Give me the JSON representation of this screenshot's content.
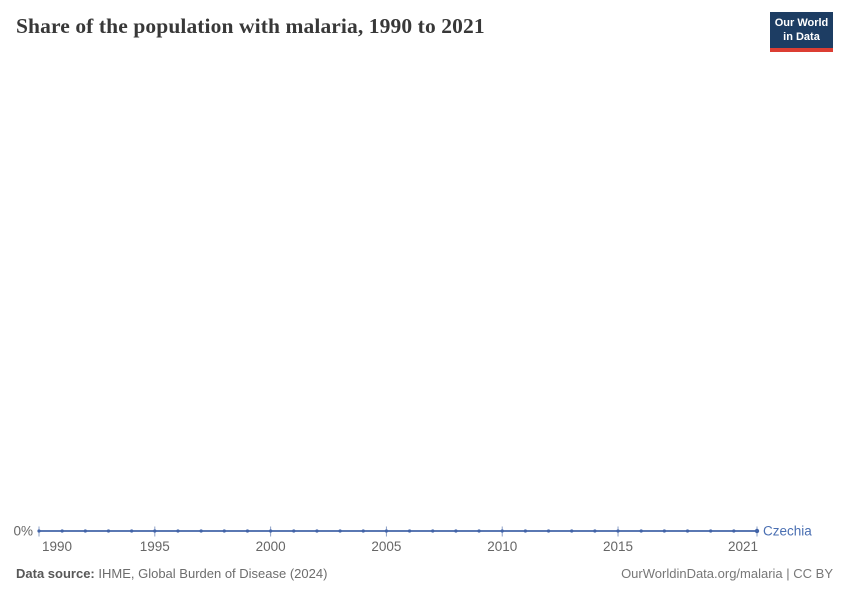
{
  "header": {
    "title": "Share of the population with malaria, 1990 to 2021",
    "logo": {
      "line1": "Our World",
      "line2": "in Data"
    }
  },
  "chart_data": {
    "type": "line",
    "title": "Share of the population with malaria, 1990 to 2021",
    "x": [
      1990,
      1991,
      1992,
      1993,
      1994,
      1995,
      1996,
      1997,
      1998,
      1999,
      2000,
      2001,
      2002,
      2003,
      2004,
      2005,
      2006,
      2007,
      2008,
      2009,
      2010,
      2011,
      2012,
      2013,
      2014,
      2015,
      2016,
      2017,
      2018,
      2019,
      2020,
      2021
    ],
    "series": [
      {
        "name": "Czechia",
        "values": [
          0,
          0,
          0,
          0,
          0,
          0,
          0,
          0,
          0,
          0,
          0,
          0,
          0,
          0,
          0,
          0,
          0,
          0,
          0,
          0,
          0,
          0,
          0,
          0,
          0,
          0,
          0,
          0,
          0,
          0,
          0,
          0
        ]
      }
    ],
    "xlabel": "",
    "ylabel": "",
    "unit": "%",
    "ylim": [
      0,
      0
    ],
    "grid": false,
    "legend_position": "end-of-line",
    "y_axis": {
      "tick_labels": [
        "0%"
      ]
    },
    "x_axis": {
      "tick_years": [
        1990,
        1995,
        2000,
        2005,
        2010,
        2015,
        2021
      ],
      "tick_labels": [
        "1990",
        "1995",
        "2000",
        "2005",
        "2010",
        "2015",
        "2021"
      ]
    },
    "colors": {
      "line": "#4264a8",
      "tick_mark": "#8da0c6",
      "axis_text": "#666666",
      "series_label": "#4a6fb2"
    }
  },
  "footer": {
    "source_label": "Data source:",
    "source_text": "IHME, Global Burden of Disease (2024)",
    "attribution": "OurWorldinData.org/malaria | CC BY"
  },
  "logo_colors": {
    "background": "#1d3d63",
    "underline": "#dc3e33"
  }
}
